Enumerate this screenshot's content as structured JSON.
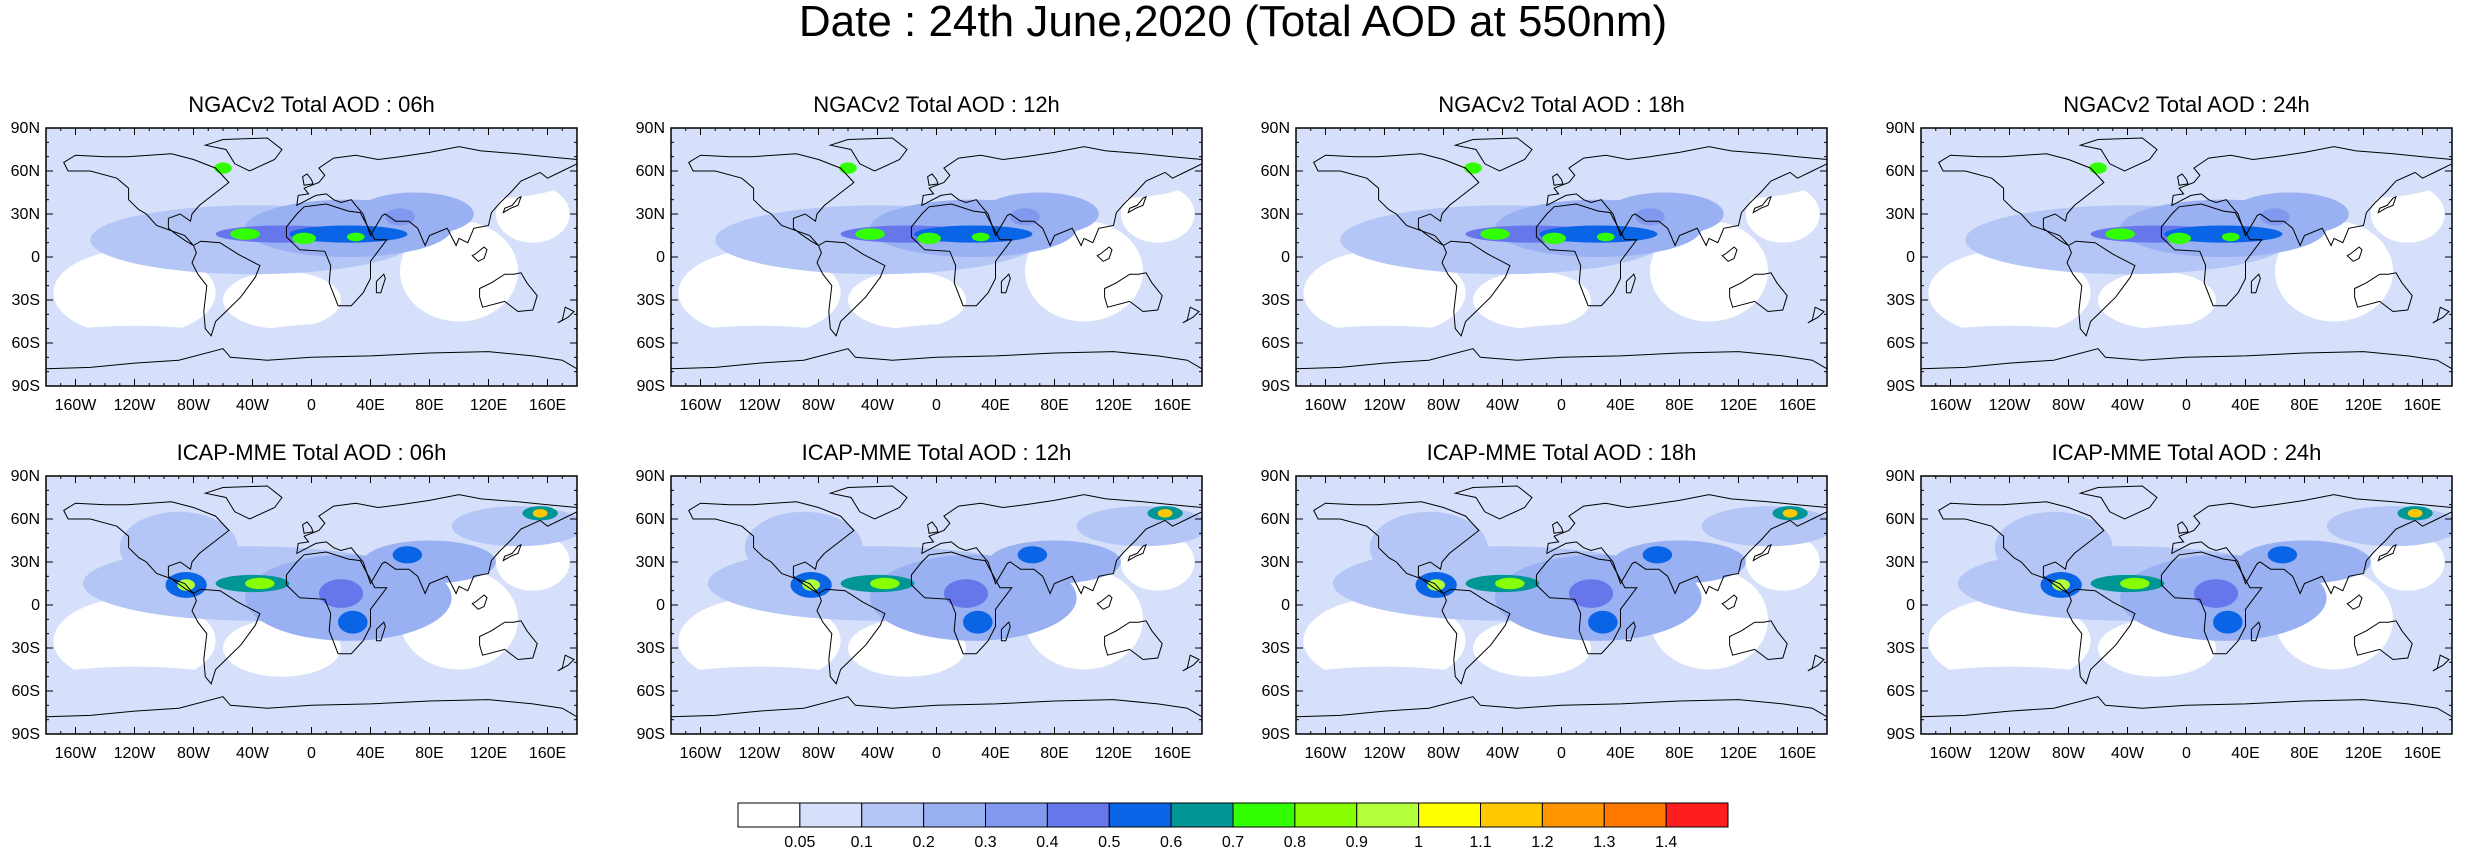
{
  "title": "Date : 24th June,2020 (Total AOD at 550nm)",
  "panels": [
    {
      "title": "NGACv2 Total AOD : 06h",
      "model": "NGACv2",
      "hour": "06h"
    },
    {
      "title": "NGACv2 Total AOD : 12h",
      "model": "NGACv2",
      "hour": "12h"
    },
    {
      "title": "NGACv2 Total AOD : 18h",
      "model": "NGACv2",
      "hour": "18h"
    },
    {
      "title": "NGACv2 Total AOD : 24h",
      "model": "NGACv2",
      "hour": "24h"
    },
    {
      "title": "ICAP-MME Total AOD : 06h",
      "model": "ICAP-MME",
      "hour": "06h"
    },
    {
      "title": "ICAP-MME Total AOD : 12h",
      "model": "ICAP-MME",
      "hour": "12h"
    },
    {
      "title": "ICAP-MME Total AOD : 18h",
      "model": "ICAP-MME",
      "hour": "18h"
    },
    {
      "title": "ICAP-MME Total AOD : 24h",
      "model": "ICAP-MME",
      "hour": "24h"
    }
  ],
  "lat_labels": [
    "90N",
    "60N",
    "30N",
    "0",
    "30S",
    "60S",
    "90S"
  ],
  "lon_labels": [
    "160W",
    "120W",
    "80W",
    "40W",
    "0",
    "40E",
    "80E",
    "120E",
    "160E"
  ],
  "lon_values": [
    -160,
    -120,
    -80,
    -40,
    0,
    40,
    80,
    120,
    160
  ],
  "lat_values": [
    90,
    60,
    30,
    0,
    -30,
    -60,
    -90
  ],
  "colorbar": {
    "labels": [
      "0.05",
      "0.1",
      "0.2",
      "0.3",
      "0.4",
      "0.5",
      "0.6",
      "0.7",
      "0.8",
      "0.9",
      "1",
      "1.1",
      "1.2",
      "1.3",
      "1.4"
    ],
    "colors": [
      "#ffffff",
      "#d6e0fa",
      "#b4c6f6",
      "#99b0f2",
      "#8099ef",
      "#6677ec",
      "#0a64e6",
      "#009696",
      "#32ff00",
      "#87ff00",
      "#b4ff3c",
      "#ffff00",
      "#ffc800",
      "#ff9600",
      "#ff7800",
      "#ff1e1e"
    ]
  }
}
